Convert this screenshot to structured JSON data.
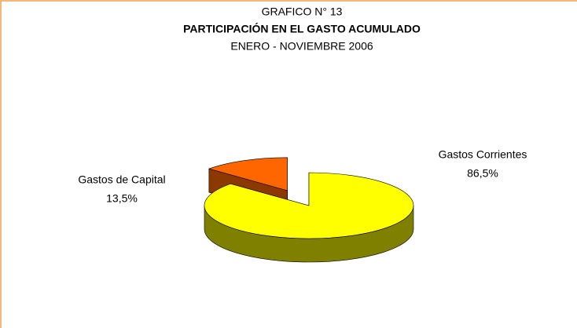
{
  "chart_data": {
    "type": "pie3d",
    "title": "GRAFICO N° 13",
    "subtitle": "PARTICIPACIÓN EN EL GASTO ACUMULADO",
    "period": "ENERO - NOVIEMBRE 2006",
    "categories": [
      "Gastos Corrientes",
      "Gastos de Capital"
    ],
    "values": [
      86.5,
      13.5
    ],
    "value_labels": [
      "86,5%",
      "13,5%"
    ],
    "colors": [
      "#ffff00",
      "#ff6600"
    ]
  }
}
